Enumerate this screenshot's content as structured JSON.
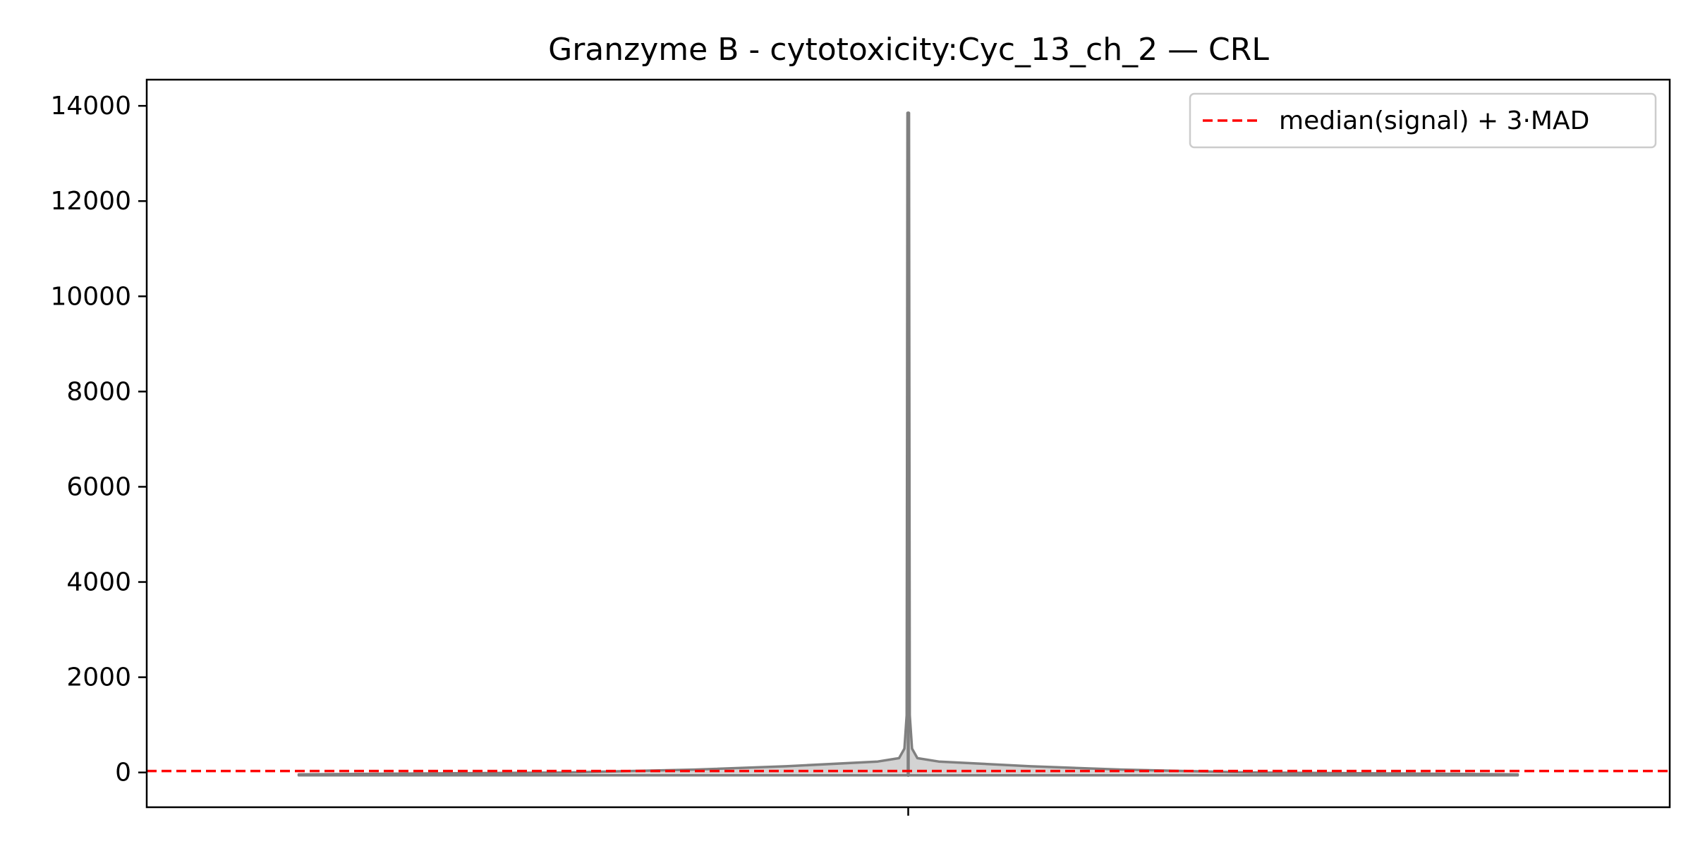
{
  "chart_data": {
    "type": "violin",
    "title": "Granzyme B - cytotoxicity:Cyc_13_ch_2 — CRL",
    "xlabel": "",
    "ylabel": "",
    "ylim": [
      -730,
      14550
    ],
    "yticks": [
      0,
      2000,
      4000,
      6000,
      8000,
      10000,
      12000,
      14000
    ],
    "ytick_labels": [
      "0",
      "2000",
      "4000",
      "6000",
      "8000",
      "10000",
      "12000",
      "14000"
    ],
    "categories": [
      ""
    ],
    "grid": false,
    "violin": {
      "fill_color": "#d3d3d3",
      "edge_color": "#808080",
      "min": -60,
      "max": 13850,
      "density_profile": [
        {
          "y": -60,
          "half_width": 0.8
        },
        {
          "y": -40,
          "half_width": 0.8
        },
        {
          "y": 0,
          "half_width": 0.45
        },
        {
          "y": 60,
          "half_width": 0.28
        },
        {
          "y": 130,
          "half_width": 0.16
        },
        {
          "y": 230,
          "half_width": 0.04
        },
        {
          "y": 300,
          "half_width": 0.012
        },
        {
          "y": 500,
          "half_width": 0.005
        },
        {
          "y": 1200,
          "half_width": 0.002
        },
        {
          "y": 13850,
          "half_width": 0.001
        }
      ]
    },
    "threshold": {
      "label": "median(signal) + 3·MAD",
      "value": 30,
      "color": "#ff0000",
      "style": "dashed"
    },
    "legend_placement": "top-right"
  }
}
